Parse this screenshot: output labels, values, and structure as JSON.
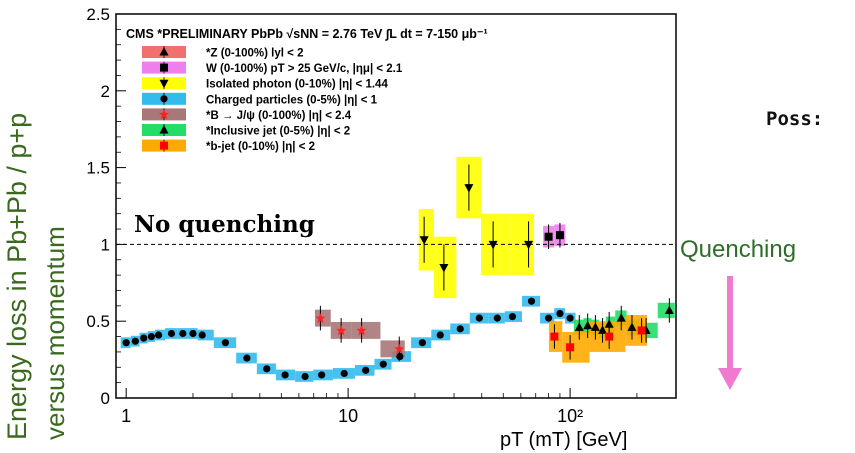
{
  "ylabel_line1": "Energy loss in Pb+Pb / p+p",
  "ylabel_line2": "versus momentum",
  "side_text": "Poss:",
  "quenching_label": "Quenching",
  "arrow_color": "#f07ad0",
  "chart_data": {
    "type": "scatter",
    "title": "CMS *PRELIMINARY PbPb √sNN = 2.76 TeV ∫L dt = 7-150 μb⁻¹",
    "xlabel": "pT (mT) [GeV]",
    "xscale": "log",
    "xlim": [
      0.9,
      300
    ],
    "ylim": [
      0,
      2.5
    ],
    "yticks": [
      "0",
      "0.5",
      "1",
      "1.5",
      "2",
      "2.5"
    ],
    "xticks": [
      "1",
      "10",
      "10²"
    ],
    "reference_line": {
      "y": 1,
      "label": "No quenching"
    },
    "legend_position": "top-left",
    "series": [
      {
        "name": "*Z (0-100%) lyl < 2",
        "color": "#f07070",
        "marker": "triangle-up",
        "points": []
      },
      {
        "name": "W (0-100%) pT > 25 GeV/c, |ημ| < 2.1",
        "color": "#ee80ee",
        "marker": "square",
        "points": [
          [
            80,
            1.05
          ],
          [
            90,
            1.06
          ]
        ]
      },
      {
        "name": "Isolated photon (0-10%) |η| < 1.44",
        "color": "#ffff00",
        "marker": "triangle-down",
        "points": [
          [
            22,
            1.03
          ],
          [
            27,
            0.85
          ],
          [
            35,
            1.37
          ],
          [
            45,
            1.0
          ],
          [
            65,
            1.0
          ]
        ]
      },
      {
        "name": "Charged particles (0-5%) |η| < 1",
        "color": "#33bbee",
        "marker": "circle",
        "points": [
          [
            1.0,
            0.36
          ],
          [
            1.1,
            0.37
          ],
          [
            1.2,
            0.39
          ],
          [
            1.3,
            0.4
          ],
          [
            1.4,
            0.41
          ],
          [
            1.6,
            0.42
          ],
          [
            1.8,
            0.42
          ],
          [
            2.0,
            0.42
          ],
          [
            2.2,
            0.41
          ],
          [
            2.8,
            0.36
          ],
          [
            3.5,
            0.26
          ],
          [
            4.3,
            0.19
          ],
          [
            5.2,
            0.15
          ],
          [
            6.4,
            0.14
          ],
          [
            7.6,
            0.15
          ],
          [
            9.6,
            0.16
          ],
          [
            12,
            0.18
          ],
          [
            14.4,
            0.22
          ],
          [
            17.1,
            0.27
          ],
          [
            21.6,
            0.36
          ],
          [
            26,
            0.41
          ],
          [
            32,
            0.45
          ],
          [
            39,
            0.52
          ],
          [
            47,
            0.52
          ],
          [
            55,
            0.53
          ],
          [
            67,
            0.63
          ],
          [
            80,
            0.52
          ],
          [
            90,
            0.55
          ],
          [
            100,
            0.52
          ]
        ]
      },
      {
        "name": "*B → J/ψ (0-100%) |η| < 2.4",
        "color": "#a87878",
        "marker": "star",
        "points": [
          [
            7.5,
            0.52
          ],
          [
            9.3,
            0.44
          ],
          [
            11.5,
            0.44
          ],
          [
            17,
            0.32
          ]
        ]
      },
      {
        "name": "*Inclusive jet (0-5%) |η| < 2",
        "color": "#22dd66",
        "marker": "triangle-up",
        "points": [
          [
            110,
            0.46
          ],
          [
            120,
            0.47
          ],
          [
            130,
            0.46
          ],
          [
            140,
            0.44
          ],
          [
            150,
            0.48
          ],
          [
            170,
            0.52
          ],
          [
            190,
            0.46
          ],
          [
            220,
            0.44
          ],
          [
            280,
            0.57
          ]
        ]
      },
      {
        "name": "*b-jet (0-10%) |η| < 2",
        "color": "#ffaa00",
        "marker": "square",
        "points": [
          [
            85,
            0.4
          ],
          [
            100,
            0.33
          ],
          [
            150,
            0.4
          ],
          [
            210,
            0.44
          ]
        ]
      }
    ]
  }
}
